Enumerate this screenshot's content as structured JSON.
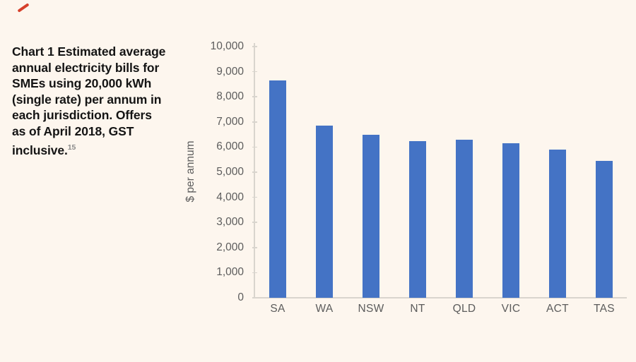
{
  "page": {
    "background": "#FDF6EE"
  },
  "annotation": {
    "red_mark_color": "#D6402B"
  },
  "title": {
    "lines": [
      "Chart 1 Estimated average",
      "annual electricity bills for",
      "SMEs using 20,000 kWh",
      "(single rate) per annum in",
      "each jurisdiction. Offers",
      "as of April 2018, GST",
      "inclusive."
    ],
    "superscript": "15"
  },
  "chart_data": {
    "type": "bar",
    "title": "Chart 1 Estimated average annual electricity bills for SMEs using 20,000 kWh (single rate) per annum in each jurisdiction. Offers as of April 2018, GST inclusive.",
    "categories": [
      "SA",
      "WA",
      "NSW",
      "NT",
      "QLD",
      "VIC",
      "ACT",
      "TAS"
    ],
    "values": [
      8650,
      6850,
      6500,
      6250,
      6300,
      6150,
      5900,
      5450
    ],
    "xlabel": "",
    "ylabel": "$ per annum",
    "ylim": [
      0,
      10000
    ],
    "ytick_step": 1000,
    "ytick_labels": [
      "0",
      "1,000",
      "2,000",
      "3,000",
      "4,000",
      "5,000",
      "6,000",
      "7,000",
      "8,000",
      "9,000",
      "10,000"
    ],
    "bar_color": "#4473C5",
    "axis_color": "#D9D5CE",
    "tick_label_color": "#5c5c5c",
    "grid": false,
    "legend_position": "none"
  }
}
